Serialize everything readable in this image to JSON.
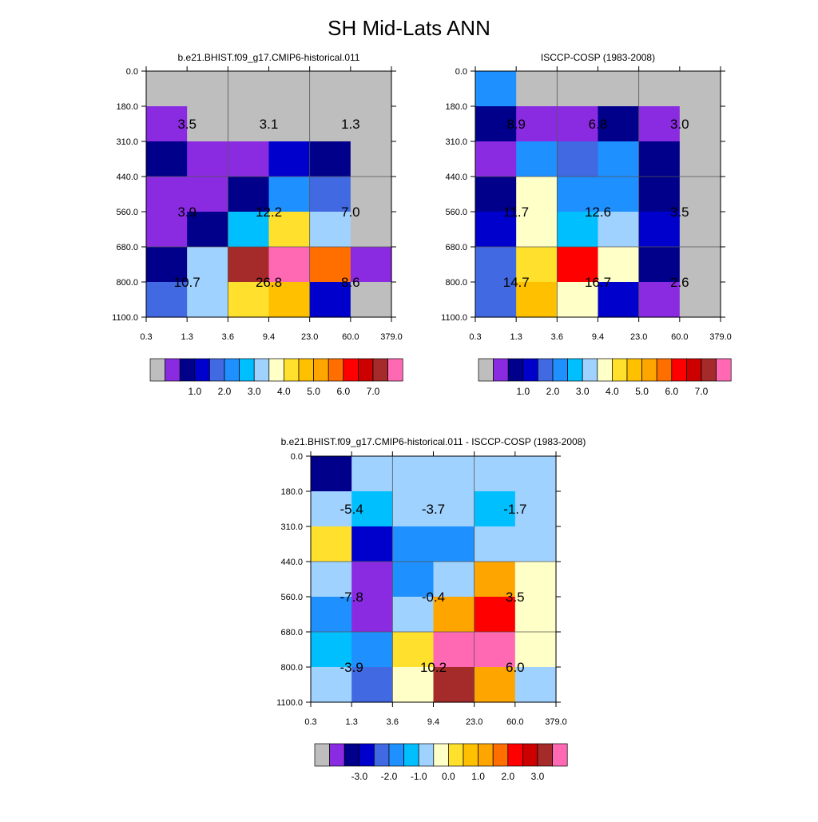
{
  "figure": {
    "title": "SH Mid-Lats ANN"
  },
  "colors": {
    "missing": "#bebebe",
    "abs_palette": [
      "#8a2be2",
      "#00008b",
      "#0000cd",
      "#4169e1",
      "#1e90ff",
      "#00bfff",
      "#a0d2ff",
      "#ffffc8",
      "#ffe12d",
      "#ffc000",
      "#ffa500",
      "#ff6f00",
      "#ff0000",
      "#cd0000",
      "#a52a2a",
      "#ff69b4"
    ],
    "diff_palette": [
      "#8a2be2",
      "#00008b",
      "#0000cd",
      "#4169e1",
      "#1e90ff",
      "#00bfff",
      "#a0d2ff",
      "#ffffc8",
      "#ffe12d",
      "#ffc000",
      "#ffa500",
      "#ff6f00",
      "#ff0000",
      "#cd0000",
      "#a52a2a",
      "#ff69b4"
    ]
  },
  "chart_data": [
    {
      "type": "heatmap",
      "title": "b.e21.BHIST.f09_g17.CMIP6-historical.011",
      "x_ticks": [
        "0.3",
        "1.3",
        "3.6",
        "9.4",
        "23.0",
        "60.0",
        "379.0"
      ],
      "y_ticks": [
        "0.0",
        "180.0",
        "310.0",
        "440.0",
        "560.0",
        "680.0",
        "800.0",
        "1100.0"
      ],
      "cells": [
        [
          -1,
          -1,
          -1,
          -1,
          -1,
          -1
        ],
        [
          0,
          -1,
          -1,
          -1,
          -1,
          -1
        ],
        [
          1,
          0,
          0,
          2,
          1,
          -1
        ],
        [
          0,
          0,
          1,
          4,
          3,
          -1
        ],
        [
          0,
          1,
          5,
          8,
          6,
          -1
        ],
        [
          1,
          6,
          14,
          15,
          11,
          0
        ],
        [
          3,
          6,
          8,
          9,
          2,
          -1
        ]
      ],
      "annotations": [
        {
          "row": 1.5,
          "col": 1,
          "text": "3.5"
        },
        {
          "row": 1.5,
          "col": 3,
          "text": "3.1"
        },
        {
          "row": 1.5,
          "col": 5,
          "text": "1.3"
        },
        {
          "row": 4,
          "col": 1,
          "text": "3.9"
        },
        {
          "row": 4,
          "col": 3,
          "text": "12.2"
        },
        {
          "row": 4,
          "col": 5,
          "text": "7.0"
        },
        {
          "row": 6,
          "col": 1,
          "text": "10.7"
        },
        {
          "row": 6,
          "col": 3,
          "text": "26.8"
        },
        {
          "row": 6,
          "col": 5,
          "text": "8.6"
        }
      ],
      "legend": {
        "labels": [
          "1.0",
          "2.0",
          "3.0",
          "4.0",
          "5.0",
          "6.0",
          "7.0"
        ]
      }
    },
    {
      "type": "heatmap",
      "title": "ISCCP-COSP (1983-2008)",
      "x_ticks": [
        "0.3",
        "1.3",
        "3.6",
        "9.4",
        "23.0",
        "60.0",
        "379.0"
      ],
      "y_ticks": [
        "0.0",
        "180.0",
        "310.0",
        "440.0",
        "560.0",
        "680.0",
        "800.0",
        "1100.0"
      ],
      "cells": [
        [
          4,
          -1,
          -1,
          -1,
          -1,
          -1
        ],
        [
          1,
          0,
          0,
          1,
          0,
          -1
        ],
        [
          0,
          4,
          3,
          4,
          1,
          -1
        ],
        [
          1,
          7,
          4,
          4,
          1,
          -1
        ],
        [
          2,
          7,
          5,
          6,
          2,
          -1
        ],
        [
          3,
          8,
          12,
          7,
          1,
          -1
        ],
        [
          3,
          9,
          7,
          2,
          0,
          -1
        ]
      ],
      "annotations": [
        {
          "row": 1.5,
          "col": 1,
          "text": "8.9"
        },
        {
          "row": 1.5,
          "col": 3,
          "text": "6.8"
        },
        {
          "row": 1.5,
          "col": 5,
          "text": "3.0"
        },
        {
          "row": 4,
          "col": 1,
          "text": "11.7"
        },
        {
          "row": 4,
          "col": 3,
          "text": "12.6"
        },
        {
          "row": 4,
          "col": 5,
          "text": "3.5"
        },
        {
          "row": 6,
          "col": 1,
          "text": "14.7"
        },
        {
          "row": 6,
          "col": 3,
          "text": "16.7"
        },
        {
          "row": 6,
          "col": 5,
          "text": "2.6"
        }
      ],
      "legend": {
        "labels": [
          "1.0",
          "2.0",
          "3.0",
          "4.0",
          "5.0",
          "6.0",
          "7.0"
        ]
      }
    },
    {
      "type": "heatmap",
      "title": "b.e21.BHIST.f09_g17.CMIP6-historical.011 - ISCCP-COSP (1983-2008)",
      "x_ticks": [
        "0.3",
        "1.3",
        "3.6",
        "9.4",
        "23.0",
        "60.0",
        "379.0"
      ],
      "y_ticks": [
        "0.0",
        "180.0",
        "310.0",
        "440.0",
        "560.0",
        "680.0",
        "800.0",
        "1100.0"
      ],
      "cells": [
        [
          1,
          6,
          6,
          6,
          6,
          6
        ],
        [
          6,
          5,
          6,
          6,
          5,
          6
        ],
        [
          8,
          2,
          4,
          4,
          6,
          6
        ],
        [
          6,
          0,
          4,
          6,
          10,
          7
        ],
        [
          4,
          0,
          6,
          10,
          12,
          7
        ],
        [
          5,
          4,
          8,
          15,
          15,
          7
        ],
        [
          6,
          3,
          7,
          14,
          10,
          6
        ]
      ],
      "annotations": [
        {
          "row": 1.5,
          "col": 1,
          "text": "-5.4"
        },
        {
          "row": 1.5,
          "col": 3,
          "text": "-3.7"
        },
        {
          "row": 1.5,
          "col": 5,
          "text": "-1.7"
        },
        {
          "row": 4,
          "col": 1,
          "text": "-7.8"
        },
        {
          "row": 4,
          "col": 3,
          "text": "-0.4"
        },
        {
          "row": 4,
          "col": 5,
          "text": "3.5"
        },
        {
          "row": 6,
          "col": 1,
          "text": "-3.9"
        },
        {
          "row": 6,
          "col": 3,
          "text": "10.2"
        },
        {
          "row": 6,
          "col": 5,
          "text": "6.0"
        }
      ],
      "legend": {
        "labels": [
          "-3.0",
          "-2.0",
          "-1.0",
          "0.0",
          "1.0",
          "2.0",
          "3.0"
        ]
      }
    }
  ]
}
